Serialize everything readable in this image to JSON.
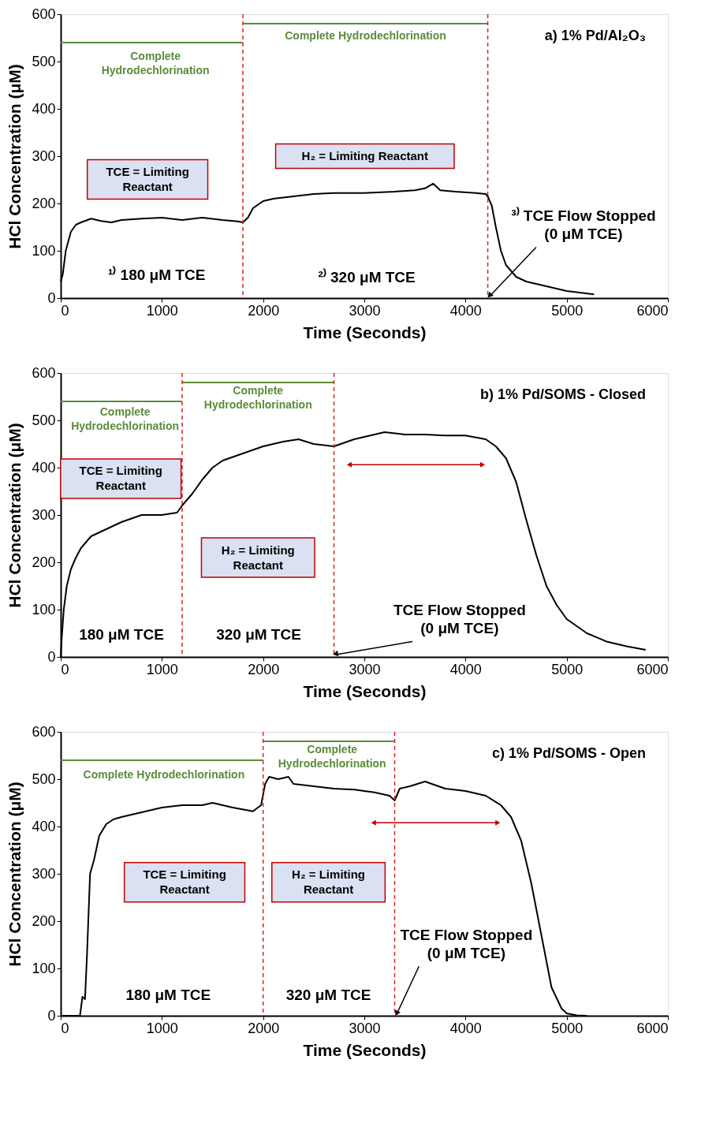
{
  "chart_data": [
    {
      "type": "line",
      "title": "a) 1% Pd/Al₂O₃",
      "xlabel": "Time (Seconds)",
      "ylabel": "HCl Concentration (μM)",
      "xlim": [
        0,
        6000
      ],
      "xticks": [
        0,
        1000,
        2000,
        3000,
        4000,
        5000,
        6000
      ],
      "ylim": [
        0,
        600
      ],
      "yticks": [
        0,
        100,
        200,
        300,
        400,
        500,
        600
      ],
      "grid": false,
      "marker": "none",
      "line_style": "solid",
      "series": [
        {
          "color": "#000000",
          "x": [
            0,
            20,
            50,
            100,
            150,
            200,
            300,
            400,
            500,
            600,
            800,
            1000,
            1200,
            1400,
            1600,
            1750,
            1800,
            1850,
            1900,
            2000,
            2100,
            2300,
            2500,
            2700,
            3000,
            3300,
            3500,
            3600,
            3680,
            3750,
            3900,
            4100,
            4200,
            4220,
            4260,
            4300,
            4350,
            4400,
            4500,
            4600,
            4800,
            5000,
            5270
          ],
          "values": [
            35,
            50,
            100,
            140,
            155,
            160,
            168,
            163,
            160,
            165,
            168,
            170,
            165,
            170,
            165,
            162,
            160,
            170,
            190,
            205,
            210,
            215,
            220,
            222,
            222,
            225,
            228,
            232,
            242,
            228,
            225,
            222,
            220,
            215,
            195,
            150,
            100,
            70,
            45,
            35,
            25,
            15,
            8
          ]
        },
        {
          "color": "#5b8c3a",
          "x": [
            0,
            1800
          ],
          "values": [
            540,
            540
          ]
        },
        {
          "color": "#5b8c3a",
          "x": [
            1800,
            4220
          ],
          "values": [
            580,
            580
          ]
        }
      ],
      "ref_lines": [
        {
          "axis": "x",
          "value": 1800,
          "color": "#e02020",
          "line_style": "dashed"
        },
        {
          "axis": "x",
          "value": 4220,
          "color": "#e02020",
          "line_style": "dashed"
        }
      ],
      "annotations": [
        "TCE = Limiting\nReactant",
        "H₂ = Limiting Reactant",
        "¹⁾ 180 μM TCE",
        "²⁾ 320 μM TCE",
        {
          "text": "³⁾ TCE Flow Stopped\n(0 μM TCE)",
          "x": 4220,
          "y": 0
        },
        "Complete\nHydrodechlorination",
        "Complete Hydrodechlorination"
      ]
    },
    {
      "type": "line",
      "title": "b) 1% Pd/SOMS - Closed",
      "xlabel": "Time (Seconds)",
      "ylabel": "HCl Concentration (μM)",
      "xlim": [
        0,
        6000
      ],
      "xticks": [
        0,
        1000,
        2000,
        3000,
        4000,
        5000,
        6000
      ],
      "ylim": [
        0,
        600
      ],
      "yticks": [
        0,
        100,
        200,
        300,
        400,
        500,
        600
      ],
      "grid": false,
      "marker": "none",
      "line_style": "solid",
      "series": [
        {
          "color": "#000000",
          "x": [
            0,
            10,
            30,
            60,
            100,
            150,
            200,
            300,
            400,
            500,
            600,
            800,
            1000,
            1150,
            1200,
            1300,
            1400,
            1500,
            1600,
            1800,
            2000,
            2200,
            2350,
            2500,
            2700,
            2900,
            3100,
            3200,
            3400,
            3600,
            3800,
            4000,
            4200,
            4300,
            4400,
            4500,
            4600,
            4700,
            4800,
            4900,
            5000,
            5200,
            5400,
            5600,
            5780
          ],
          "values": [
            0,
            40,
            100,
            150,
            185,
            210,
            230,
            255,
            265,
            275,
            285,
            300,
            300,
            305,
            320,
            345,
            375,
            400,
            415,
            430,
            445,
            455,
            460,
            450,
            445,
            460,
            470,
            475,
            470,
            470,
            468,
            468,
            460,
            445,
            420,
            370,
            290,
            215,
            150,
            110,
            80,
            50,
            32,
            22,
            15
          ]
        },
        {
          "color": "#5b8c3a",
          "x": [
            0,
            1200
          ],
          "values": [
            540,
            540
          ]
        },
        {
          "color": "#5b8c3a",
          "x": [
            1200,
            2700
          ],
          "values": [
            580,
            580
          ]
        }
      ],
      "ref_lines": [
        {
          "axis": "x",
          "value": 1200,
          "color": "#e02020",
          "line_style": "dashed"
        },
        {
          "axis": "x",
          "value": 2700,
          "color": "#e02020",
          "line_style": "dashed"
        }
      ],
      "annotations": [
        "TCE = Limiting\nReactant",
        "H₂ = Limiting\nReactant",
        "180 μM TCE",
        "320 μM TCE",
        {
          "text": "TCE Flow Stopped\n(0 μM TCE)",
          "x": 2700,
          "y": 0
        },
        "Complete\nHydrodechlorination",
        "Complete\nHydrodechlorination"
      ]
    },
    {
      "type": "line",
      "title": "c) 1% Pd/SOMS - Open",
      "xlabel": "Time (Seconds)",
      "ylabel": "HCl Concentration (μM)",
      "xlim": [
        0,
        6000
      ],
      "xticks": [
        0,
        1000,
        2000,
        3000,
        4000,
        5000,
        6000
      ],
      "ylim": [
        0,
        600
      ],
      "yticks": [
        0,
        100,
        200,
        300,
        400,
        500,
        600
      ],
      "grid": false,
      "marker": "none",
      "line_style": "solid",
      "series": [
        {
          "color": "#000000",
          "x": [
            0,
            100,
            190,
            215,
            240,
            260,
            290,
            330,
            380,
            450,
            520,
            600,
            800,
            1000,
            1200,
            1400,
            1500,
            1700,
            1900,
            1980,
            2020,
            2060,
            2150,
            2250,
            2300,
            2500,
            2700,
            2900,
            3100,
            3250,
            3300,
            3350,
            3450,
            3600,
            3800,
            4000,
            4200,
            4350,
            4450,
            4550,
            4650,
            4750,
            4850,
            4950,
            5000,
            5100,
            5200
          ],
          "values": [
            0,
            0,
            0,
            40,
            35,
            130,
            300,
            330,
            380,
            405,
            415,
            420,
            430,
            440,
            445,
            445,
            450,
            440,
            432,
            445,
            490,
            505,
            500,
            505,
            490,
            485,
            480,
            478,
            472,
            465,
            455,
            480,
            485,
            495,
            480,
            475,
            465,
            445,
            420,
            370,
            280,
            170,
            60,
            15,
            5,
            1,
            0
          ]
        },
        {
          "color": "#5b8c3a",
          "x": [
            0,
            2000
          ],
          "values": [
            540,
            540
          ]
        },
        {
          "color": "#5b8c3a",
          "x": [
            2000,
            3300
          ],
          "values": [
            580,
            580
          ]
        }
      ],
      "ref_lines": [
        {
          "axis": "x",
          "value": 2000,
          "color": "#e02020",
          "line_style": "dashed"
        },
        {
          "axis": "x",
          "value": 3300,
          "color": "#e02020",
          "line_style": "dashed"
        }
      ],
      "annotations": [
        "TCE = Limiting\nReactant",
        "H₂ = Limiting\nReactant",
        "180 μM TCE",
        "320 μM TCE",
        {
          "text": "TCE Flow Stopped\n(0 μM TCE)",
          "x": 3300,
          "y": 0
        },
        "Complete Hydrodechlorination",
        "Complete\nHydrodechlorination"
      ]
    }
  ]
}
